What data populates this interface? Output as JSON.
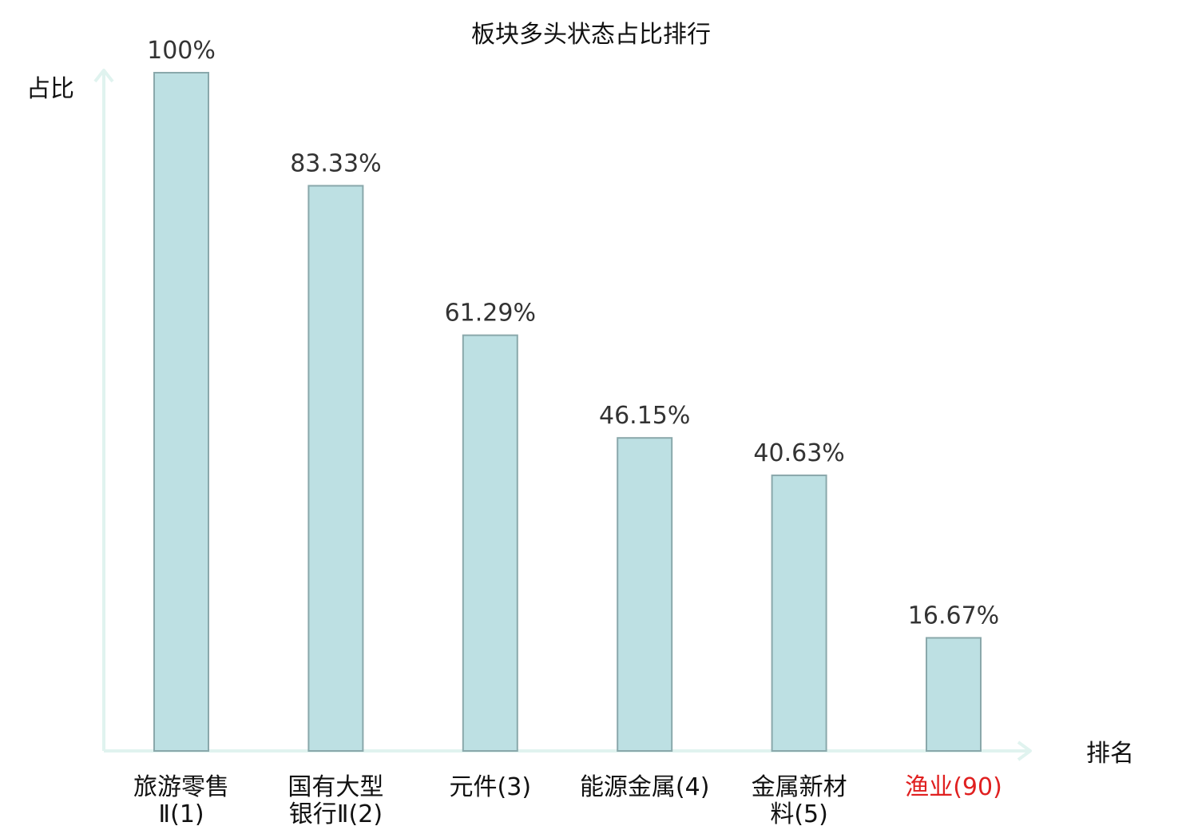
{
  "chart_data": {
    "type": "bar",
    "title": "板块多头状态占比排行",
    "ylabel": "占比",
    "xlabel": "排名",
    "ylim": [
      0,
      100
    ],
    "grid": false,
    "categories": [
      {
        "name": "旅游零售Ⅱ",
        "rank": "(1)",
        "lines": [
          "旅游零售",
          "Ⅱ"
        ],
        "highlight": false
      },
      {
        "name": "国有大型银行Ⅱ",
        "rank": "(2)",
        "lines": [
          "国有大型",
          "银行Ⅱ"
        ],
        "highlight": false
      },
      {
        "name": "元件",
        "rank": "(3)",
        "lines": [
          "元件"
        ],
        "highlight": false
      },
      {
        "name": "能源金属",
        "rank": "(4)",
        "lines": [
          "能源金属"
        ],
        "highlight": false
      },
      {
        "name": "金属新材料",
        "rank": "(5)",
        "lines": [
          "金属新材",
          "料"
        ],
        "highlight": false
      },
      {
        "name": "渔业",
        "rank": "(90)",
        "lines": [
          "渔业"
        ],
        "highlight": true
      }
    ],
    "values": [
      100,
      83.33,
      61.29,
      46.15,
      40.63,
      16.67
    ],
    "value_labels": [
      "100%",
      "83.33%",
      "61.29%",
      "46.15%",
      "40.63%",
      "16.67%"
    ],
    "colors": {
      "bar_fill": "#bde0e3",
      "bar_stroke": "#8aa8ab",
      "axis": "#e0f3ef",
      "label_text": "#333333",
      "category_text": "#111111",
      "highlight_text": "#e02020"
    }
  }
}
